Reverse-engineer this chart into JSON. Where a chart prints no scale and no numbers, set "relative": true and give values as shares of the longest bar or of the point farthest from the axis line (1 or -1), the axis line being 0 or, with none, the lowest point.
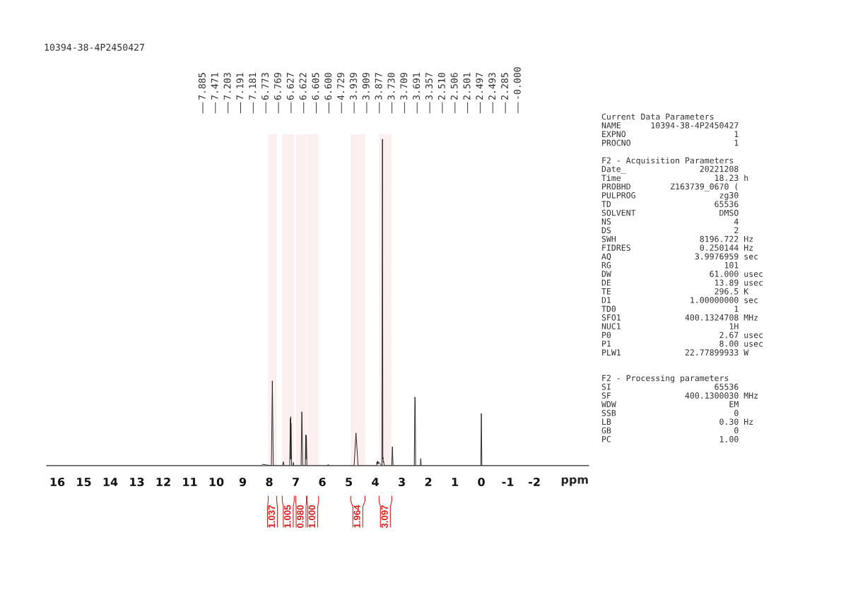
{
  "chart_data": [
    {
      "type": "line",
      "title": "10394-38-4P2450427",
      "xlabel": "ppm",
      "relative": true,
      "xlim": [
        16.4,
        -4.05
      ],
      "xticks": [
        16,
        15,
        14,
        13,
        12,
        11,
        10,
        9,
        8,
        7,
        6,
        5,
        4,
        3,
        2,
        1,
        0,
        -1,
        -2
      ],
      "series": [
        {
          "color": "#222222",
          "x": [
            16.4,
            8.3,
            8.25,
            7.92,
            7.885,
            7.85,
            7.5,
            7.471,
            7.44,
            7.23,
            7.203,
            7.197,
            7.191,
            7.186,
            7.181,
            7.16,
            7.1,
            7.09,
            7.08,
            6.8,
            6.773,
            6.769,
            6.74,
            6.64,
            6.627,
            6.622,
            6.613,
            6.605,
            6.6,
            6.58,
            5.8,
            5.78,
            5.76,
            4.8,
            4.729,
            4.65,
            3.95,
            3.939,
            3.925,
            3.909,
            3.895,
            3.877,
            3.75,
            3.73,
            3.715,
            3.709,
            3.7,
            3.691,
            3.66,
            3.38,
            3.357,
            3.33,
            2.53,
            2.51,
            2.506,
            2.501,
            2.497,
            2.493,
            2.48,
            2.3,
            2.285,
            2.27,
            0.02,
            0.0,
            -0.02,
            -4.05
          ],
          "values": [
            0,
            0,
            0.004,
            0,
            0.26,
            0,
            0,
            0.012,
            0,
            0,
            0.145,
            0.02,
            0.15,
            0.02,
            0.13,
            0,
            0,
            0.01,
            0,
            0,
            0.165,
            0.16,
            0,
            0,
            0.09,
            0.095,
            0.02,
            0.092,
            0.088,
            0,
            0,
            0.004,
            0,
            0,
            0.1,
            0,
            0,
            0.012,
            0.005,
            0.014,
            0.005,
            0.011,
            0,
            1.0,
            0.02,
            0.025,
            0.01,
            0.015,
            0,
            0,
            0.058,
            0,
            0,
            0.2,
            0.21,
            0.205,
            0.2,
            0.19,
            0,
            0,
            0.022,
            0,
            0,
            0.16,
            0,
            0
          ]
        }
      ],
      "annotations": [
        "7.885",
        "7.471",
        "7.203",
        "7.191",
        "7.181",
        "6.773",
        "6.769",
        "6.627",
        "6.622",
        "6.605",
        "6.600",
        "4.729",
        "3.939",
        "3.909",
        "3.877",
        "3.730",
        "3.709",
        "3.691",
        "3.357",
        "2.510",
        "2.506",
        "2.501",
        "2.497",
        "2.493",
        "2.285",
        "-0.000"
      ],
      "bands": [
        {
          "axis": "x",
          "from": 8.04,
          "to": 7.72,
          "label": "1.037",
          "color": "#d62020"
        },
        {
          "axis": "x",
          "from": 7.51,
          "to": 7.06,
          "label": "1.005",
          "color": "#d62020"
        },
        {
          "axis": "x",
          "from": 7.0,
          "to": 6.6,
          "label": "0.980",
          "color": "#d62020"
        },
        {
          "axis": "x",
          "from": 6.58,
          "to": 6.14,
          "label": "1.000",
          "color": "#d62020"
        },
        {
          "axis": "x",
          "from": 4.93,
          "to": 4.39,
          "label": "1.964",
          "color": "#d62020"
        },
        {
          "axis": "x",
          "from": 3.86,
          "to": 3.38,
          "label": "3.097",
          "color": "#d62020"
        }
      ]
    },
    {
      "type": "other",
      "annotations": [
        "Current Data Parameters",
        "NAME      10394-38-4P2450427",
        "EXPNO                      1",
        "PROCNO                     1"
      ]
    },
    {
      "type": "other",
      "annotations": [
        "F2 - Acquisition Parameters",
        "Date_               20221208",
        "Time                   18.23 h",
        "PROBHD        Z163739_0670 (",
        "PULPROG                 zg30",
        "TD                     65536",
        "SOLVENT                 DMSO",
        "NS                         4",
        "DS                         2",
        "SWH                 8196.722 Hz",
        "FIDRES              0.250144 Hz",
        "AQ                 3.9976959 sec",
        "RG                       101",
        "DW                    61.000 usec",
        "DE                     13.89 usec",
        "TE                     296.5 K",
        "D1                1.00000000 sec",
        "TD0                        1",
        "SFO1             400.1324708 MHz",
        "NUC1                      1H",
        "P0                      2.67 usec",
        "P1                      8.00 usec",
        "PLW1             22.77899933 W"
      ]
    },
    {
      "type": "other",
      "annotations": [
        "F2 - Processing parameters",
        "SI                     65536",
        "SF               400.1300030 MHz",
        "WDW                       EM",
        "SSB                        0",
        "LB                      0.30 Hz",
        "GB                         0",
        "PC                      1.00"
      ]
    }
  ]
}
